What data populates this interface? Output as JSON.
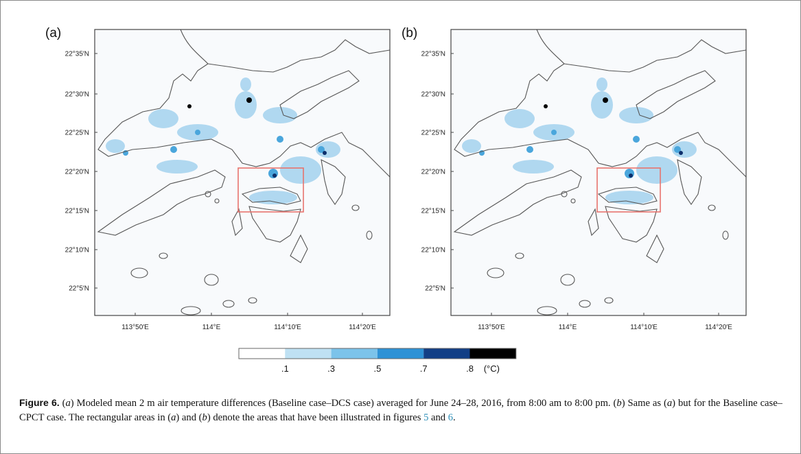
{
  "panels": [
    {
      "label": "(a)",
      "yticks": [
        "22°35′N",
        "22°30′N",
        "22°25′N",
        "22°20′N",
        "22°15′N",
        "22°10′N",
        "22°5′N"
      ],
      "xticks": [
        "113°50′E",
        "114°E",
        "114°10′E",
        "114°20′E"
      ]
    },
    {
      "label": "(b)",
      "yticks": [
        "22°35′N",
        "22°30′N",
        "22°25′N",
        "22°20′N",
        "22°15′N",
        "22°10′N",
        "22°5′N"
      ],
      "xticks": [
        "113°50′E",
        "114°E",
        "114°10′E",
        "114°20′E"
      ]
    }
  ],
  "colorbar": {
    "labels": [
      ".1",
      ".3",
      ".5",
      ".7",
      ".8"
    ],
    "unit": "(°C)"
  },
  "caption": {
    "label": "Figure 6.",
    "parts": [
      "(",
      "a",
      ") Modeled mean 2 m air temperature differences (Baseline case–DCS case) averaged for June 24–28, 2016, from 8:00 am to 8:00 pm. (",
      "b",
      ") Same as (",
      "a",
      ") but for the Baseline case–CPCT case. The rectangular areas in (",
      "a",
      ") and (",
      "b",
      ") denote the areas that have been illustrated in figures ",
      "5",
      " and ",
      "6",
      "."
    ]
  }
}
